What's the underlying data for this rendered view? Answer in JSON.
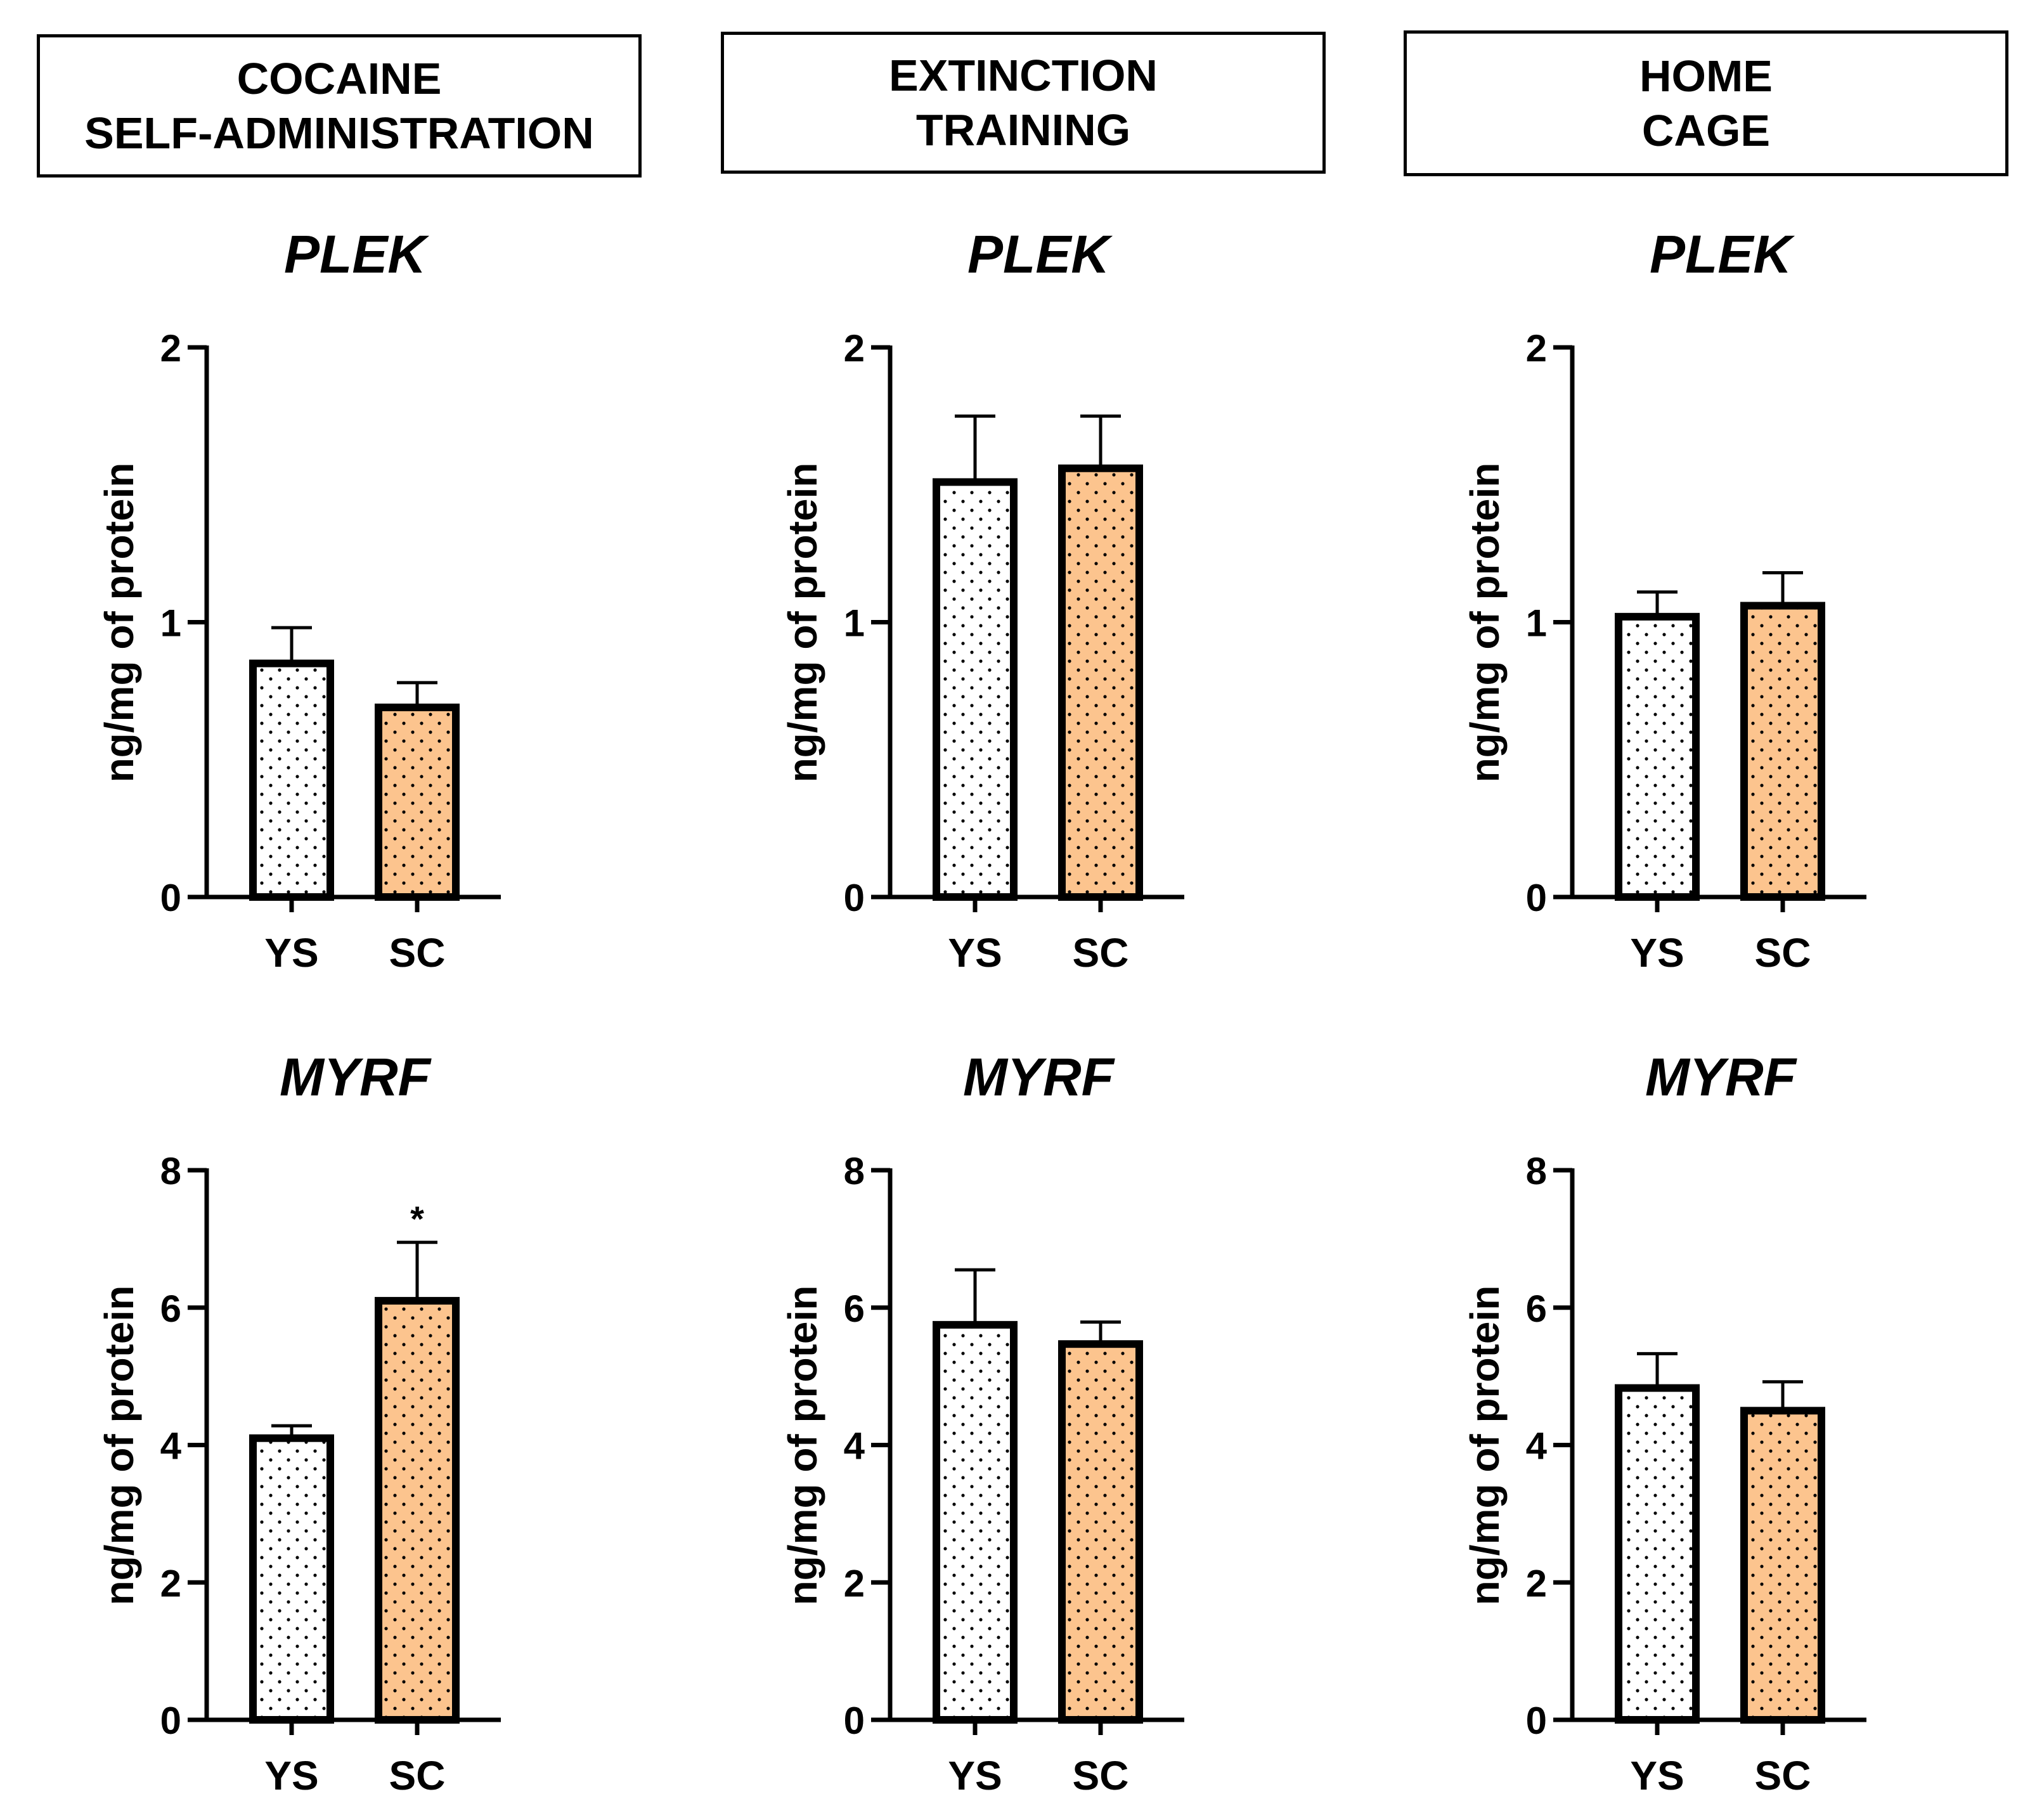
{
  "colors": {
    "ys_fill": "#ffffff",
    "sc_fill": "#fcc48e",
    "dot": "#000000",
    "stroke": "#000000"
  },
  "columns": [
    {
      "line1": "COCAINE",
      "line2": "SELF-ADMINISTRATION"
    },
    {
      "line1": "EXTINCTION",
      "line2": "TRAINING"
    },
    {
      "line1": "HOME",
      "line2": "CAGE"
    }
  ],
  "chart_data": [
    {
      "type": "bar",
      "title": "PLEK",
      "ylabel": "ng/mg of protein",
      "categories": [
        "YS",
        "SC"
      ],
      "values": [
        0.85,
        0.69
      ],
      "errors": [
        0.13,
        0.09
      ],
      "ylim": [
        0,
        2
      ],
      "yticks": [
        0,
        1,
        2
      ],
      "annotations": [
        "",
        ""
      ]
    },
    {
      "type": "bar",
      "title": "PLEK",
      "ylabel": "ng/mg of protein",
      "categories": [
        "YS",
        "SC"
      ],
      "values": [
        1.51,
        1.56
      ],
      "errors": [
        0.24,
        0.19
      ],
      "ylim": [
        0,
        2
      ],
      "yticks": [
        0,
        1,
        2
      ],
      "annotations": [
        "",
        ""
      ]
    },
    {
      "type": "bar",
      "title": "PLEK",
      "ylabel": "ng/mg of protein",
      "categories": [
        "YS",
        "SC"
      ],
      "values": [
        1.02,
        1.06
      ],
      "errors": [
        0.09,
        0.12
      ],
      "ylim": [
        0,
        2
      ],
      "yticks": [
        0,
        1,
        2
      ],
      "annotations": [
        "",
        ""
      ]
    },
    {
      "type": "bar",
      "title": "MYRF",
      "ylabel": "ng/mg of protein",
      "categories": [
        "YS",
        "SC"
      ],
      "values": [
        4.1,
        6.1
      ],
      "errors": [
        0.18,
        0.85
      ],
      "ylim": [
        0,
        8
      ],
      "yticks": [
        0,
        2,
        4,
        6,
        8
      ],
      "annotations": [
        "",
        "*"
      ]
    },
    {
      "type": "bar",
      "title": "MYRF",
      "ylabel": "ng/mg of protein",
      "categories": [
        "YS",
        "SC"
      ],
      "values": [
        5.75,
        5.47
      ],
      "errors": [
        0.8,
        0.32
      ],
      "ylim": [
        0,
        8
      ],
      "yticks": [
        0,
        2,
        4,
        6,
        8
      ],
      "annotations": [
        "",
        ""
      ]
    },
    {
      "type": "bar",
      "title": "MYRF",
      "ylabel": "ng/mg of protein",
      "categories": [
        "YS",
        "SC"
      ],
      "values": [
        4.83,
        4.5
      ],
      "errors": [
        0.5,
        0.42
      ],
      "ylim": [
        0,
        8
      ],
      "yticks": [
        0,
        2,
        4,
        6,
        8
      ],
      "annotations": [
        "",
        ""
      ]
    }
  ]
}
